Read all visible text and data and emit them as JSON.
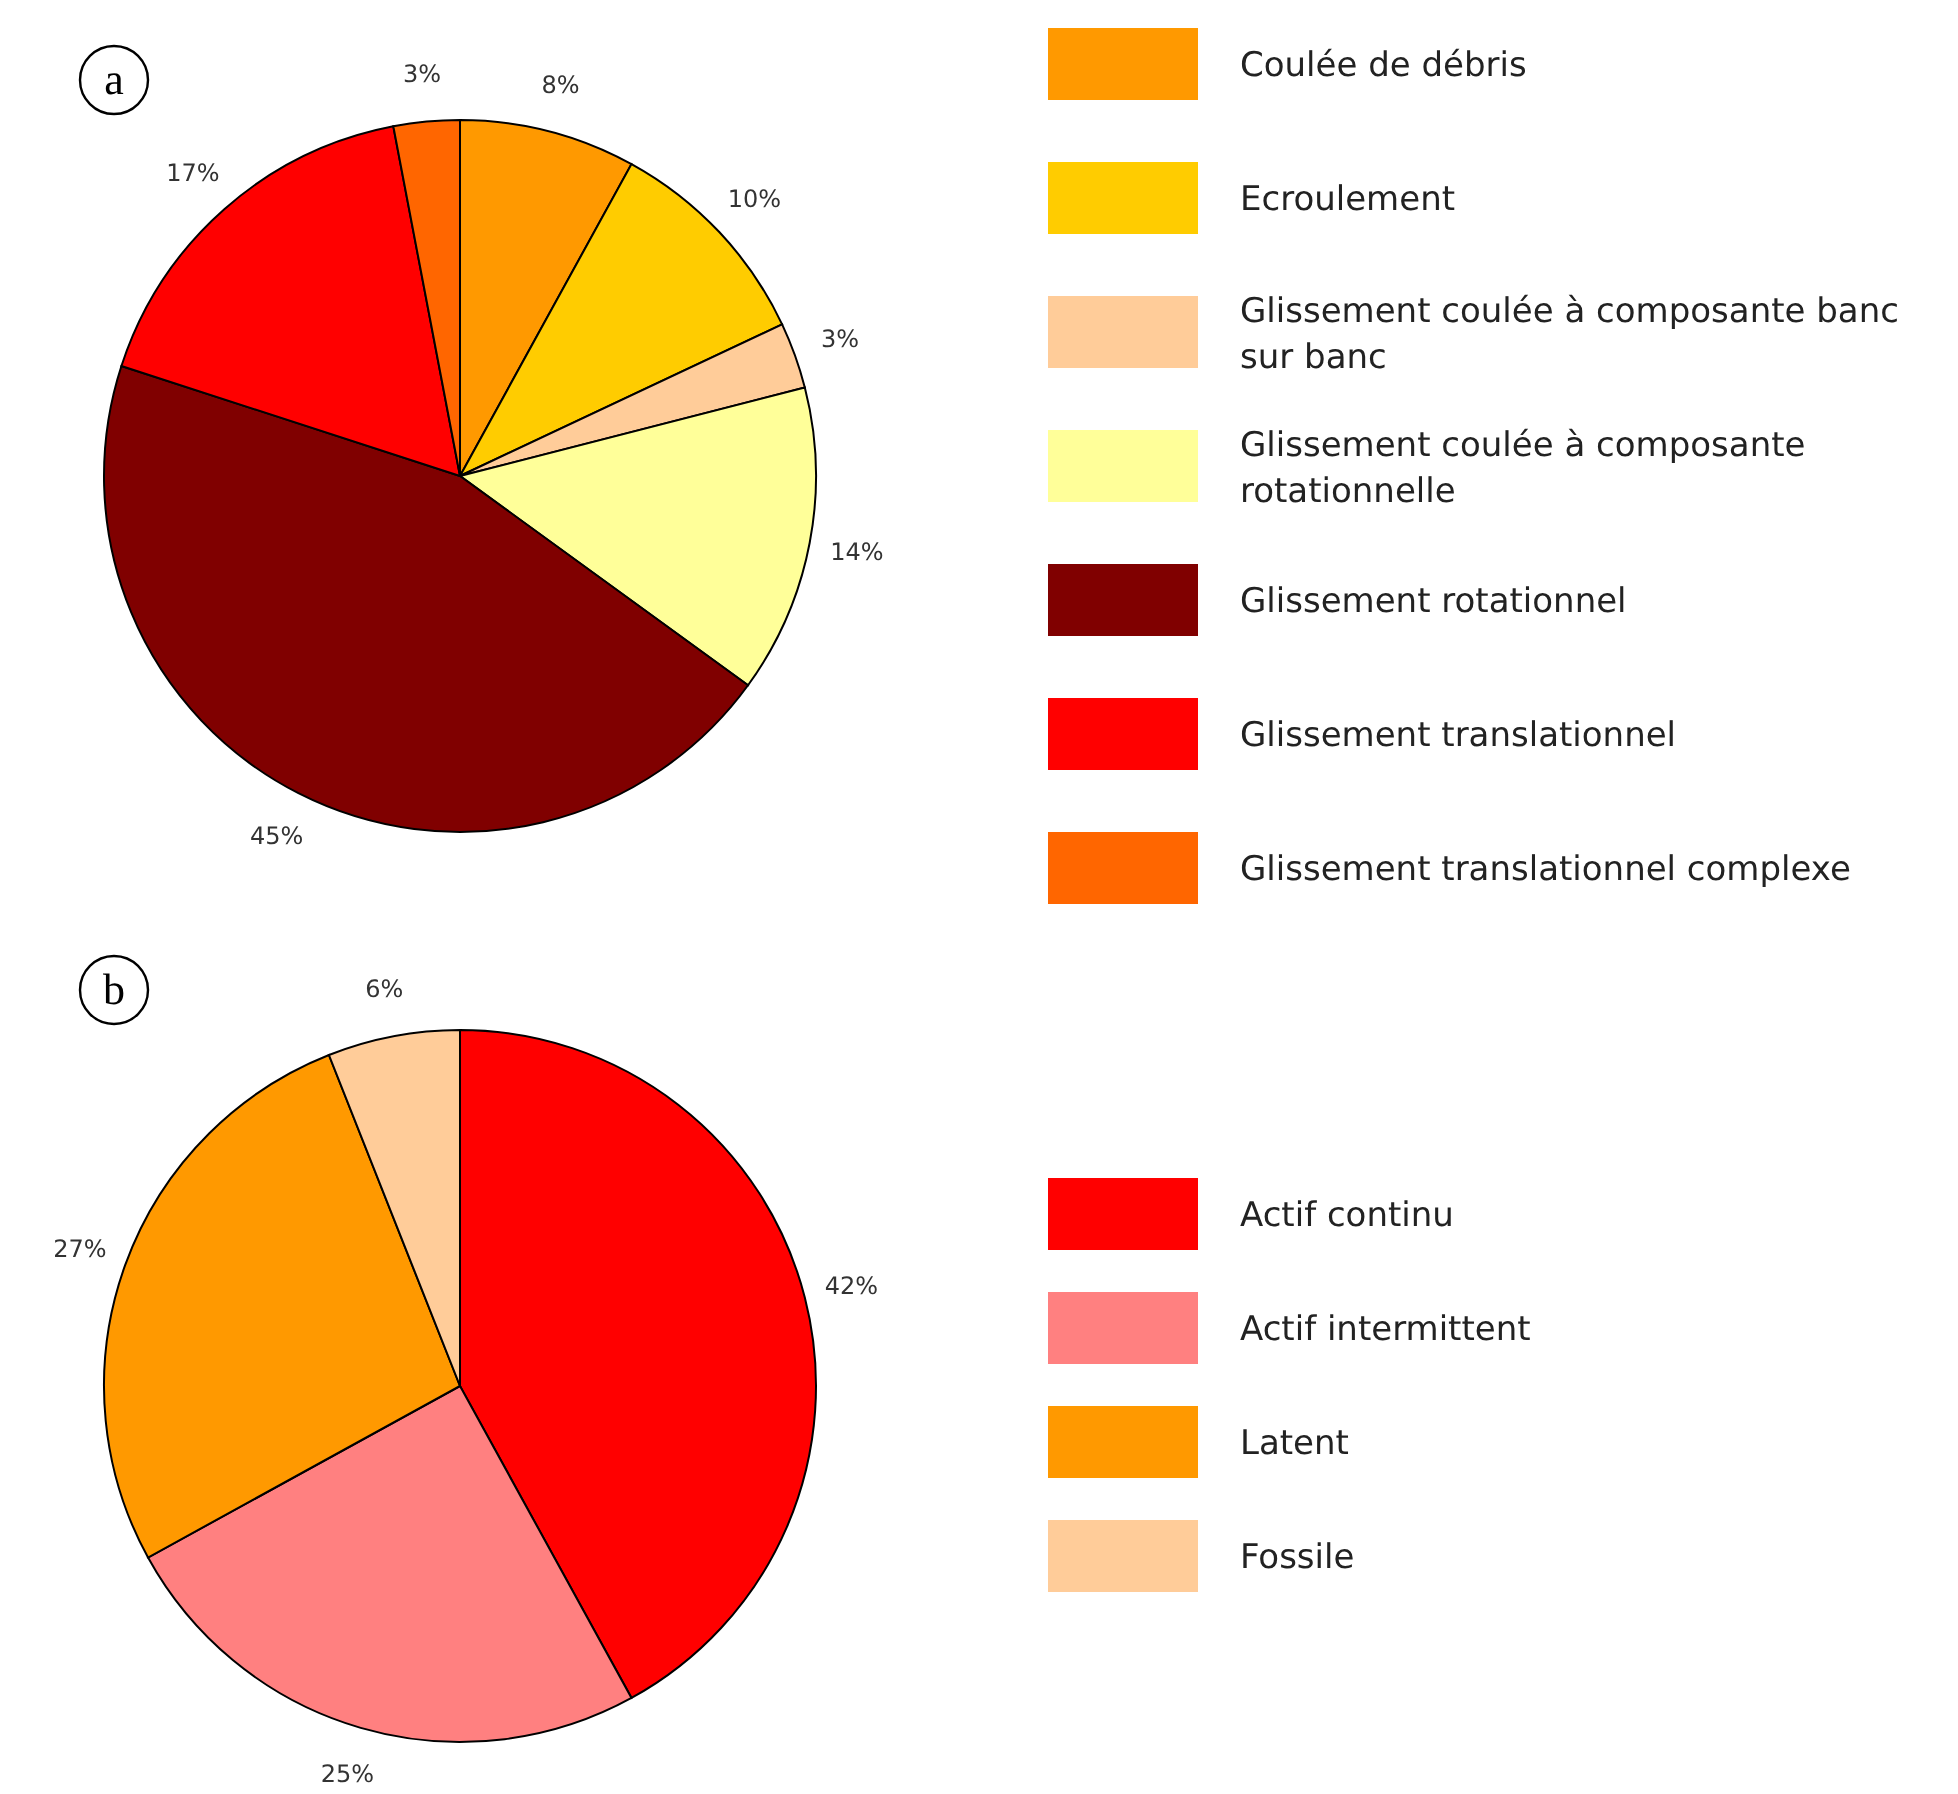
{
  "chart_data": [
    {
      "type": "pie",
      "title": "a",
      "categories": [
        "Coulée de débris",
        "Ecroulement",
        "Glissement coulée à composante banc sur banc",
        "Glissement coulée à composante rotationnelle",
        "Glissement rotationnel",
        "Glissement translationnel",
        "Glissement translationnel complexe"
      ],
      "values": [
        8,
        10,
        3,
        14,
        45,
        17,
        3
      ],
      "colors": [
        "#ff9900",
        "#ffcc00",
        "#ffcc99",
        "#ffff99",
        "#800000",
        "#ff0000",
        "#ff6600"
      ],
      "value_labels": [
        "8%",
        "10%",
        "3%",
        "14%",
        "45%",
        "17%",
        "3%"
      ],
      "legend": "right"
    },
    {
      "type": "pie",
      "title": "b",
      "categories": [
        "Actif continu",
        "Actif intermittent",
        "Latent",
        "Fossile"
      ],
      "values": [
        42,
        25,
        27,
        6
      ],
      "colors": [
        "#ff0000",
        "#ff8080",
        "#ff9900",
        "#ffcc99"
      ],
      "value_labels": [
        "42%",
        "25%",
        "27%",
        "6%"
      ],
      "legend": "right"
    }
  ]
}
